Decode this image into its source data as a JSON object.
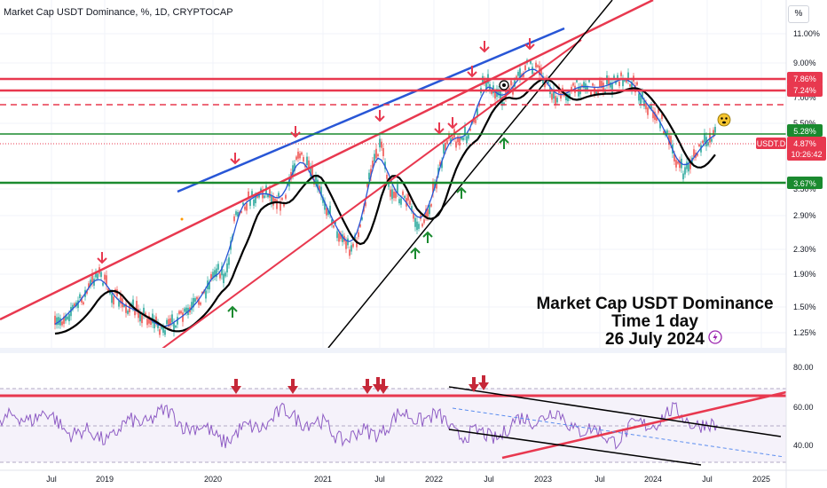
{
  "header": {
    "title": "Market Cap USDT Dominance, %, 1D, CRYPTOCAP",
    "unit": "%"
  },
  "annotation": {
    "line1": "Market Cap USDT Dominance",
    "line2": "Time 1 day",
    "line3": "26  July 2024"
  },
  "price_label": {
    "symbol": "USDT.D",
    "value": "4.87%",
    "countdown": "10:26:42"
  },
  "colors": {
    "red": "#e8384f",
    "green": "#1a8a2f",
    "blue": "#2856d6",
    "black": "#000000",
    "candle_up": "#26a69a",
    "candle_down": "#ef5350",
    "rsi": "#8e5cc4"
  },
  "chart_data": [
    {
      "type": "candlestick",
      "scale": "log",
      "y_ticks": [
        "11.00%",
        "9.00%",
        "7.00%",
        "5.50%",
        "3.50%",
        "2.90%",
        "2.30%",
        "1.90%",
        "1.50%",
        "1.25%"
      ],
      "x_ticks": [
        "Jul",
        "2019",
        "2020",
        "2021",
        "Jul",
        "2022",
        "Jul",
        "2023",
        "Jul",
        "2024",
        "Jul",
        "2025"
      ],
      "horizontal_levels": [
        {
          "label": "7.86%",
          "value": 7.86,
          "color": "red"
        },
        {
          "label": "7.24%",
          "value": 7.24,
          "color": "red"
        },
        {
          "label": "5.28%",
          "value": 5.28,
          "color": "green"
        },
        {
          "label": "3.67%",
          "value": 3.67,
          "color": "green"
        }
      ],
      "last_value": 4.87
    },
    {
      "type": "line",
      "name": "RSI",
      "y_ticks": [
        "80.00",
        "60.00",
        "40.00"
      ],
      "ylim": [
        25,
        85
      ],
      "levels": [
        70,
        50,
        30
      ]
    }
  ]
}
